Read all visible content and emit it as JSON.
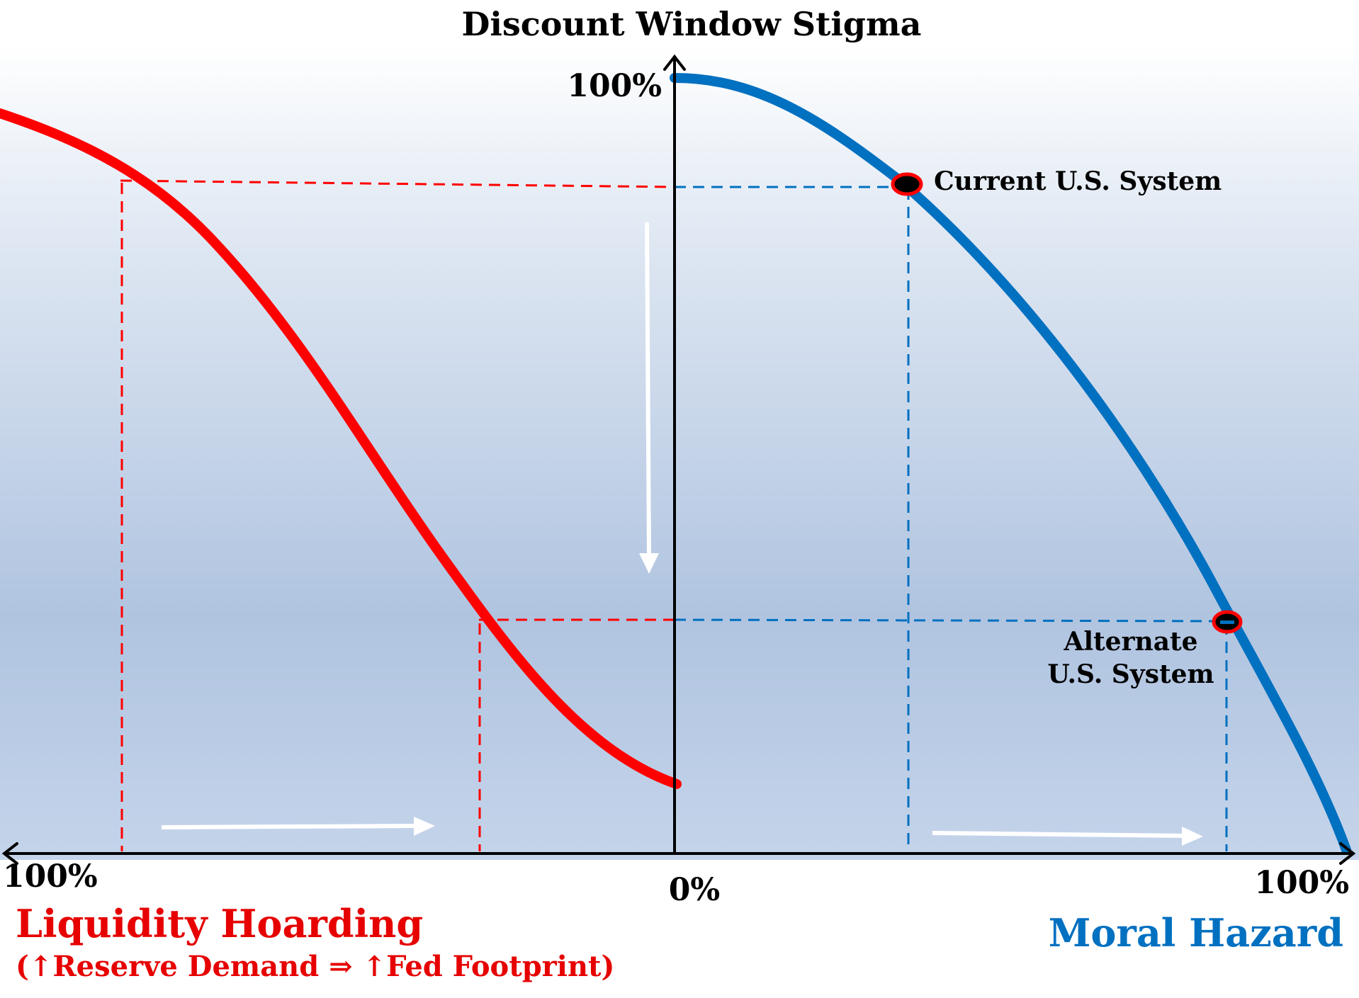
{
  "diagram": {
    "title": "Discount Window Stigma",
    "y_top_label": "100%",
    "x_left_label": "100%",
    "x_center_label": "0%",
    "x_right_label": "100%",
    "left_axis_title": "Liquidity Hoarding",
    "left_axis_subtitle": "(↑Reserve Demand ⇒ ↑Fed Footprint)",
    "right_axis_title": "Moral Hazard",
    "point_current_label": "Current U.S. System",
    "point_alternate_label_line1": "Alternate",
    "point_alternate_label_line2": "U.S. System",
    "colors": {
      "liquidity_curve": "#ff0000",
      "moral_hazard_curve": "#0070c0",
      "axis": "#000000",
      "left_title": "#e60000",
      "right_title": "#0070c0",
      "background_top": "#ffffff",
      "background_bottom": "#b0c4e0",
      "arrows": "#ffffff"
    }
  }
}
